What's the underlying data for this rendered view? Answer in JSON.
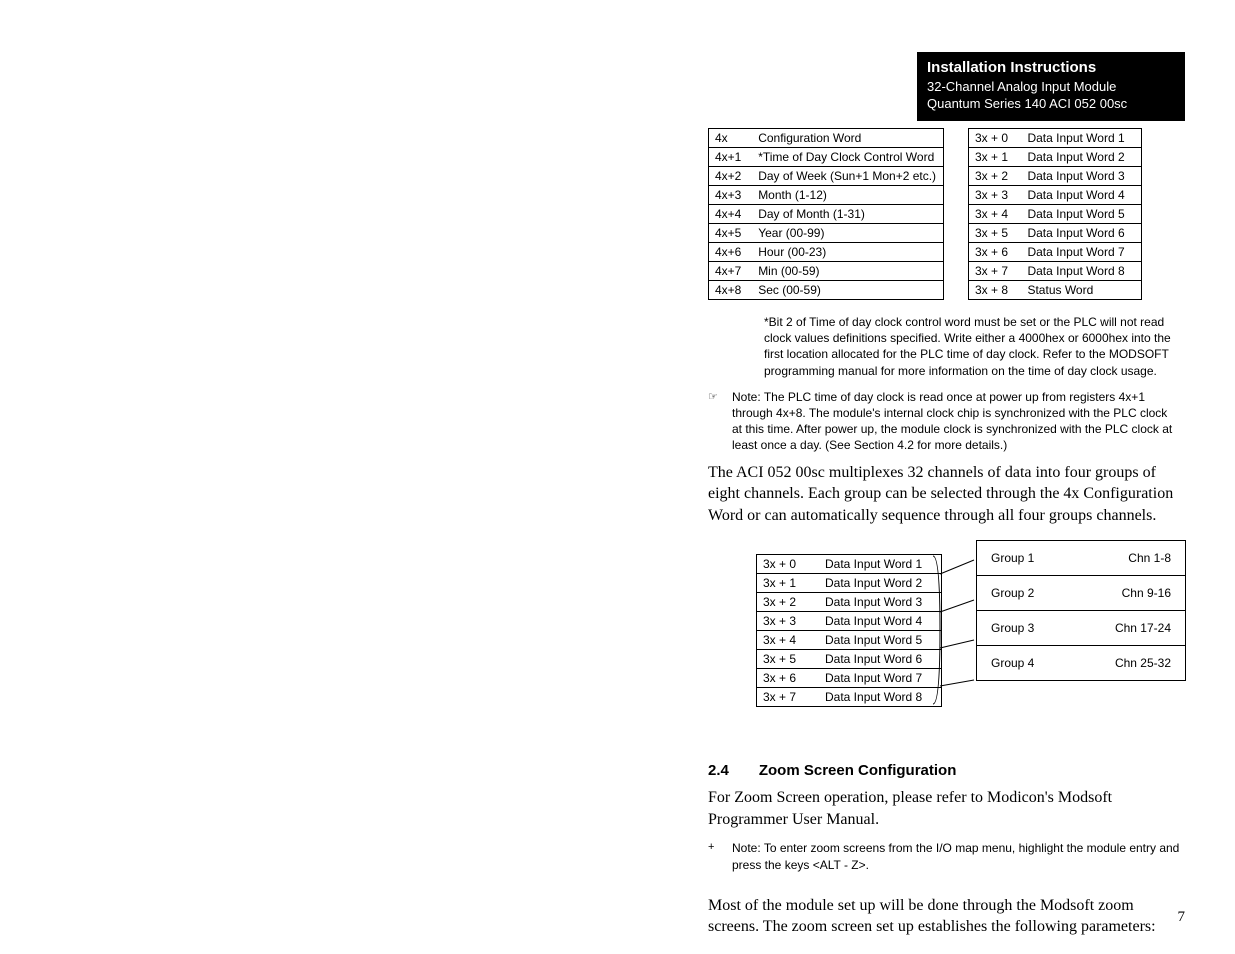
{
  "header": {
    "title": "Installation Instructions",
    "line1": "32-Channel Analog Input Module",
    "line2": "Quantum Series 140 ACI 052 00sc"
  },
  "table_4x": {
    "rows": [
      {
        "reg": "4x",
        "desc": "Configuration Word"
      },
      {
        "reg": "4x+1",
        "desc": "*Time of Day Clock Control Word"
      },
      {
        "reg": "4x+2",
        "desc": "Day of Week (Sun+1 Mon+2 etc.)"
      },
      {
        "reg": "4x+3",
        "desc": "Month (1-12)"
      },
      {
        "reg": "4x+4",
        "desc": "Day of Month (1-31)"
      },
      {
        "reg": "4x+5",
        "desc": "Year (00-99)"
      },
      {
        "reg": "4x+6",
        "desc": "Hour (00-23)"
      },
      {
        "reg": "4x+7",
        "desc": "Min (00-59)"
      },
      {
        "reg": "4x+8",
        "desc": "Sec (00-59)"
      }
    ]
  },
  "table_3x": {
    "rows": [
      {
        "reg": "3x + 0",
        "desc": "Data Input Word 1"
      },
      {
        "reg": "3x + 1",
        "desc": "Data Input Word 2"
      },
      {
        "reg": "3x + 2",
        "desc": "Data Input Word 3"
      },
      {
        "reg": "3x + 3",
        "desc": "Data Input Word 4"
      },
      {
        "reg": "3x + 4",
        "desc": "Data Input Word 5"
      },
      {
        "reg": "3x + 5",
        "desc": "Data Input Word 6"
      },
      {
        "reg": "3x + 6",
        "desc": "Data Input Word 7"
      },
      {
        "reg": "3x + 7",
        "desc": "Data Input Word 8"
      },
      {
        "reg": "3x + 8",
        "desc": "Status Word"
      }
    ]
  },
  "footnote": "*Bit 2 of Time of day clock control word must be set or the PLC will not read clock values definitions  specified.  Write either a 4000hex or 6000hex into the first location allocated for the PLC time of day clock.  Refer to the MODSOFT programming manual for more information on the time of day clock usage.",
  "note1": {
    "icon": "☞",
    "label": "Note:",
    "text": "The PLC time of day clock is read once at power up from registers 4x+1 through 4x+8.  The module's internal clock chip is synchronized with the PLC clock at this time.  After power up, the module clock is synchronized with the PLC clock at least once a day.  (See Section 4.2 for more details.)"
  },
  "para1": "The ACI 052 00sc multiplexes 32 channels of data  into four groups of eight channels.  Each group can be selected through the 4x Configuration Word or can automatically sequence through all four groups channels.",
  "mux_left": {
    "rows": [
      {
        "reg": "3x + 0",
        "desc": "Data Input Word 1"
      },
      {
        "reg": "3x + 1",
        "desc": "Data Input Word 2"
      },
      {
        "reg": "3x + 2",
        "desc": "Data Input Word 3"
      },
      {
        "reg": "3x + 3",
        "desc": "Data Input Word 4"
      },
      {
        "reg": "3x + 4",
        "desc": "Data Input Word 5"
      },
      {
        "reg": "3x + 5",
        "desc": "Data Input Word 6"
      },
      {
        "reg": "3x + 6",
        "desc": "Data Input Word 7"
      },
      {
        "reg": "3x + 7",
        "desc": "Data Input Word 8"
      }
    ]
  },
  "mux_right": {
    "rows": [
      {
        "g": "Group 1",
        "c": "Chn 1-8"
      },
      {
        "g": "Group 2",
        "c": "Chn 9-16"
      },
      {
        "g": "Group 3",
        "c": "Chn 17-24"
      },
      {
        "g": "Group 4",
        "c": "Chn 25-32"
      }
    ]
  },
  "section": {
    "num": "2.4",
    "title": "Zoom Screen Configuration"
  },
  "para2": "For Zoom Screen operation, please refer to Modicon's Modsoft Programmer User Manual.",
  "note2": {
    "icon": "+",
    "label": "Note:",
    "text": "To enter zoom screens from the I/O map menu, highlight the module entry and press the keys <ALT - Z>."
  },
  "para3": "Most of the module set up will be done through the Modsoft zoom screens.  The zoom screen set up establishes the following parameters:",
  "page_number": "7"
}
